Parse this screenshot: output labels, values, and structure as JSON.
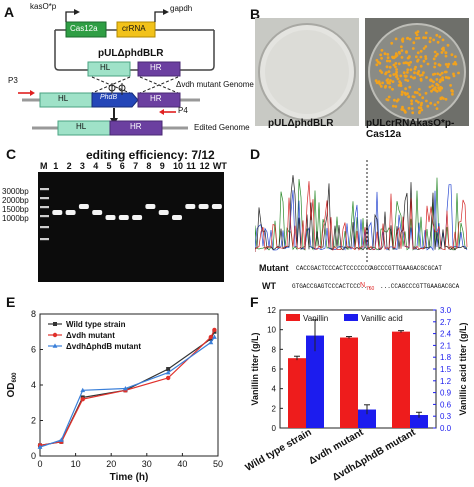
{
  "panels": {
    "A": {
      "letter": "A",
      "promoter_kas": "kasO*p",
      "gene_cas": "Cas12a",
      "gene_crrna": "crRNA",
      "promoter_gapdh": "gapdh",
      "plasmid": "pULΔphdBLR",
      "hl": "HL",
      "hr": "HR",
      "mutant_genome": "Δvdh mutant Genome",
      "primer_p3": "P3",
      "primer_p4": "P4",
      "gene_phdb": "PhdB",
      "edited_genome": "Edited Genome"
    },
    "B": {
      "letter": "B",
      "plate1_label": "pULΔphdBLR",
      "plate2_label": "pULcrRNAkasO*p-Cas12a"
    },
    "C": {
      "letter": "C",
      "title": "editing efficiency: 7/12",
      "lane_labels": [
        "M",
        "1",
        "2",
        "3",
        "4",
        "5",
        "6",
        "7",
        "8",
        "9",
        "10",
        "11",
        "12",
        "WT"
      ],
      "ladder": [
        "3000bp",
        "2000bp",
        "1500bp",
        "1000bp"
      ]
    },
    "D": {
      "letter": "D",
      "mutant_label": "Mutant",
      "wt_label": "WT",
      "mutant_seq_left": "CACCGACTCCCACTCCCCCCC",
      "mutant_seq_right": "AGCCCGTTGAAGACGCGCAT",
      "wt_seq_left": "GTGACCGAGTCCCACTCCC...",
      "wt_seq_mid": "N",
      "wt_seq_sub": "760",
      "wt_seq_right": "...CCAGCCCGTTGAAGACGCA"
    },
    "E": {
      "letter": "E",
      "legend": [
        "Wild type strain",
        "Δvdh mutant",
        "ΔvdhΔphdB mutant"
      ]
    },
    "F": {
      "letter": "F",
      "legend": [
        "Vanillin",
        "Vanillic acid"
      ]
    }
  },
  "chart_data": [
    {
      "type": "line",
      "xlabel": "Time (h)",
      "ylabel": "OD600",
      "xlim": [
        0,
        50
      ],
      "ylim": [
        0,
        8
      ],
      "xticks": [
        0,
        10,
        20,
        30,
        40,
        50
      ],
      "yticks": [
        0,
        2,
        4,
        6,
        8
      ],
      "x": [
        0,
        6,
        12,
        24,
        36,
        48,
        49
      ],
      "series": [
        {
          "name": "Wild type strain",
          "color": "#333333",
          "values": [
            0.6,
            0.8,
            3.3,
            3.7,
            4.9,
            6.6,
            7.0
          ]
        },
        {
          "name": "Δvdh mutant",
          "color": "#e0302b",
          "values": [
            0.6,
            0.8,
            3.2,
            3.7,
            4.4,
            6.7,
            7.1
          ]
        },
        {
          "name": "ΔvdhΔphdB mutant",
          "color": "#3a7fd9",
          "values": [
            0.5,
            0.9,
            3.7,
            3.8,
            4.7,
            6.4,
            6.7
          ]
        }
      ]
    },
    {
      "type": "bar",
      "categories": [
        "Wild type strain",
        "Δvdh mutant",
        "ΔvdhΔphdB mutant"
      ],
      "ylabel": "Vanillin titer (g/L)",
      "y2label": "Vanillic acid titer (g/L)",
      "ylim": [
        0,
        12
      ],
      "y2lim": [
        0,
        3.0
      ],
      "yticks": [
        0,
        2,
        4,
        6,
        8,
        10,
        12
      ],
      "y2ticks": [
        0.0,
        0.3,
        0.6,
        0.9,
        1.2,
        1.5,
        1.8,
        2.1,
        2.4,
        2.7,
        3.0
      ],
      "series": [
        {
          "name": "Vanillin",
          "color": "#ee1c1c",
          "axis": "left",
          "values": [
            7.1,
            9.2,
            9.8
          ],
          "err": [
            0.2,
            0.1,
            0.1
          ]
        },
        {
          "name": "Vanillic acid",
          "color": "#1c1cee",
          "axis": "right",
          "values": [
            2.35,
            0.47,
            0.33
          ],
          "err": [
            0.4,
            0.12,
            0.07
          ]
        }
      ]
    }
  ]
}
